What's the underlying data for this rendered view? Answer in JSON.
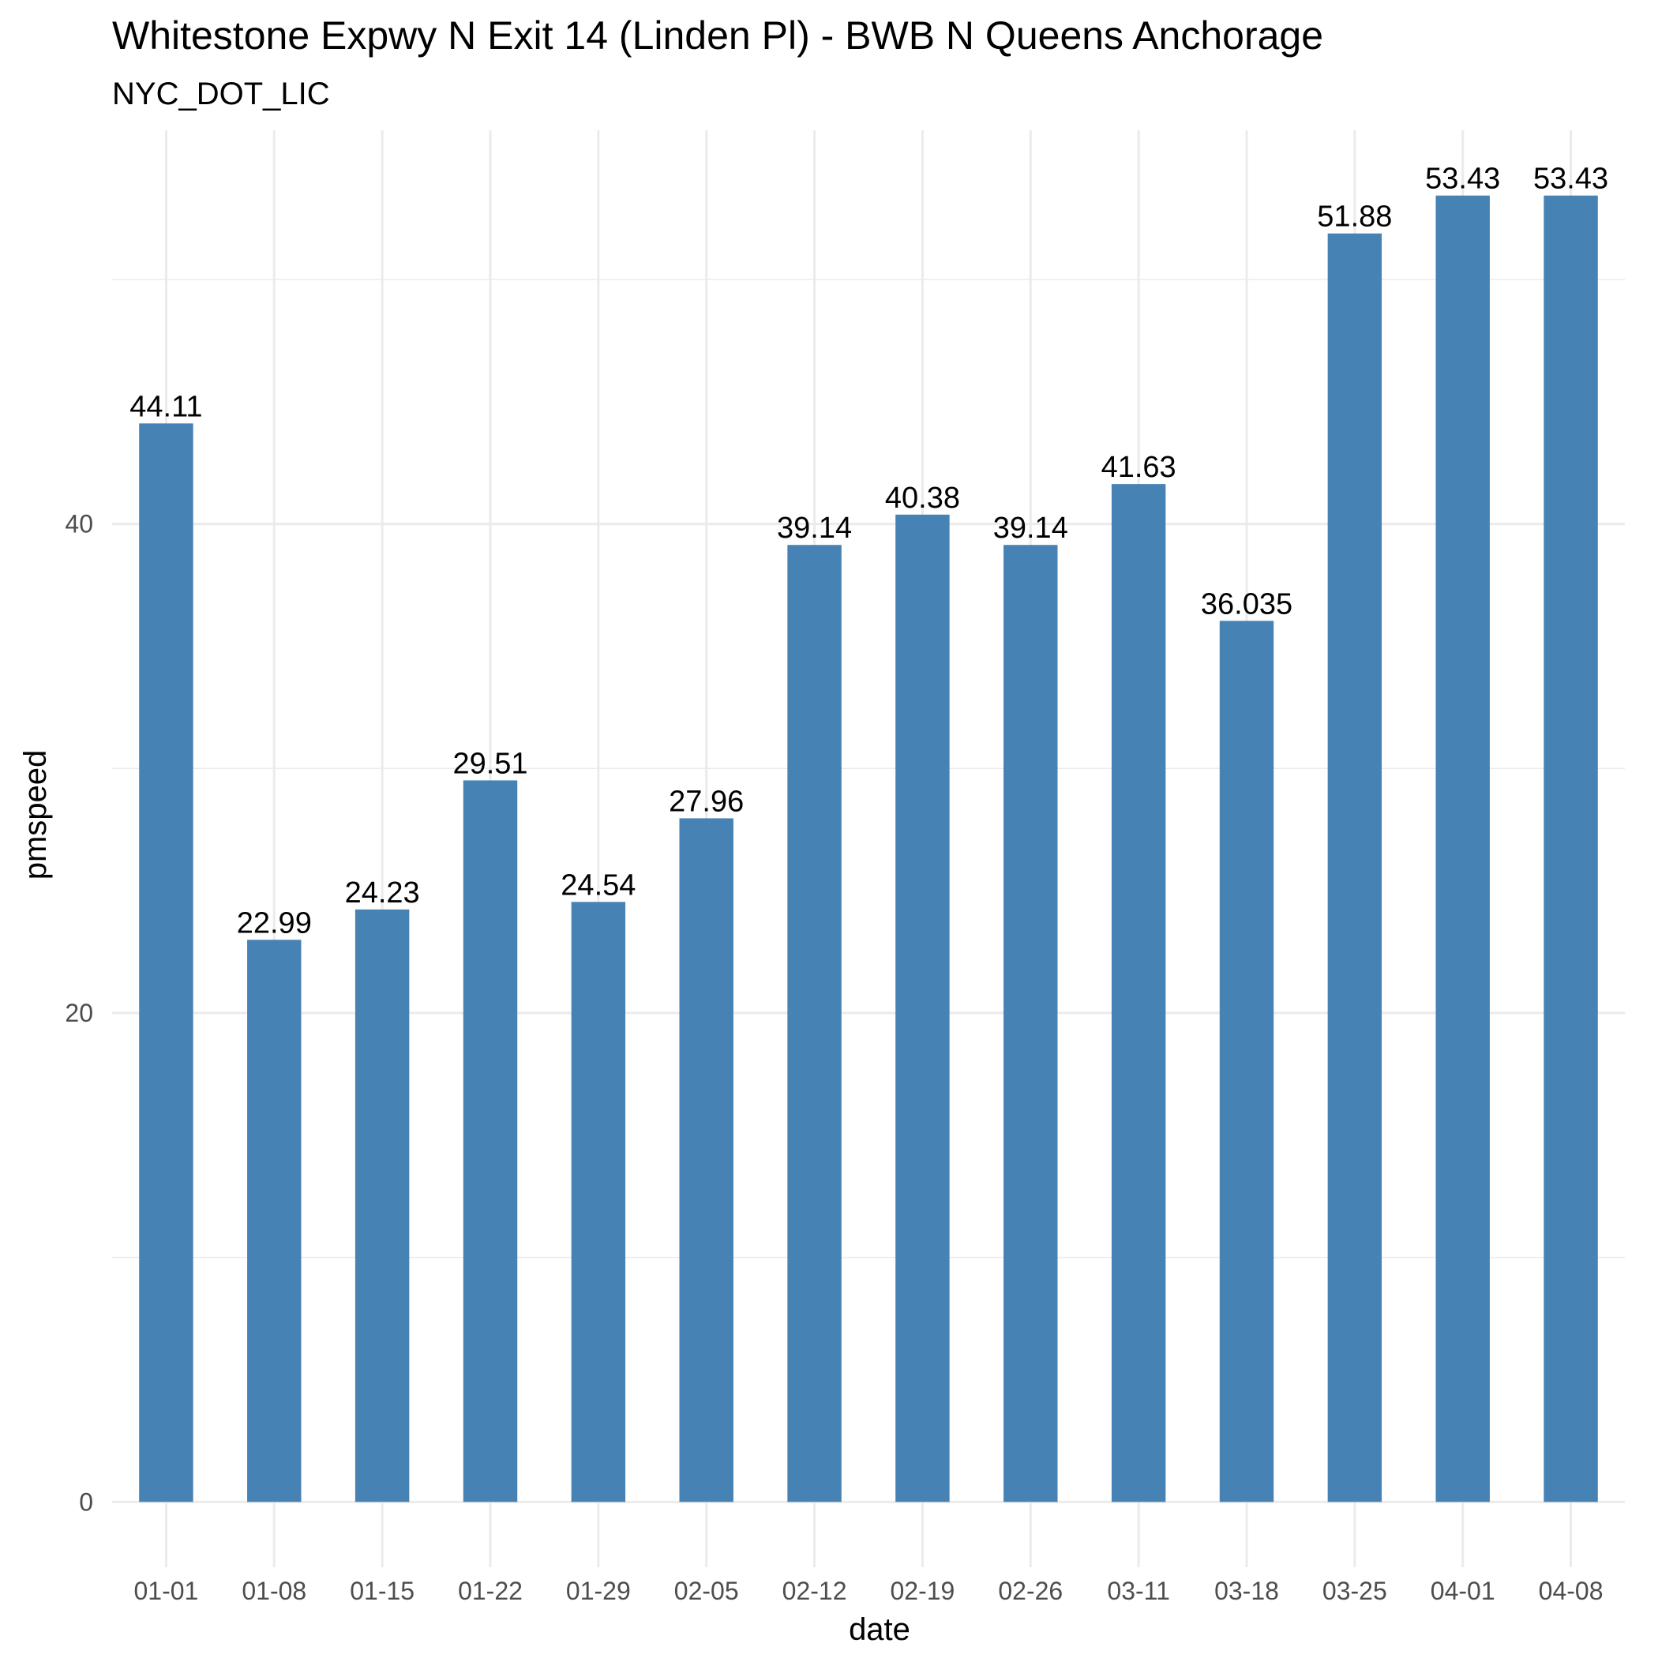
{
  "chart_data": {
    "type": "bar",
    "title": "Whitestone Expwy N Exit 14 (Linden Pl) - BWB N Queens Anchorage",
    "subtitle": "NYC_DOT_LIC",
    "xlabel": "date",
    "ylabel": "pmspeed",
    "categories": [
      "01-01",
      "01-08",
      "01-15",
      "01-22",
      "01-29",
      "02-05",
      "02-12",
      "02-19",
      "02-26",
      "03-11",
      "03-18",
      "03-25",
      "04-01",
      "04-08"
    ],
    "values": [
      44.11,
      22.99,
      24.23,
      29.51,
      24.54,
      27.96,
      39.14,
      40.38,
      39.14,
      41.63,
      36.035,
      51.88,
      53.43,
      53.43
    ],
    "data_labels": [
      "44.11",
      "22.99",
      "24.23",
      "29.51",
      "24.54",
      "27.96",
      "39.14",
      "40.38",
      "39.14",
      "41.63",
      "36.035",
      "51.88",
      "53.43",
      "53.43"
    ],
    "yticks": [
      0,
      20,
      40
    ],
    "ytick_labels": [
      "0",
      "20",
      "40"
    ],
    "ylim": [
      -2.67,
      56.1
    ],
    "bar_color": "#4682b4",
    "grid": true,
    "legend": "none"
  }
}
